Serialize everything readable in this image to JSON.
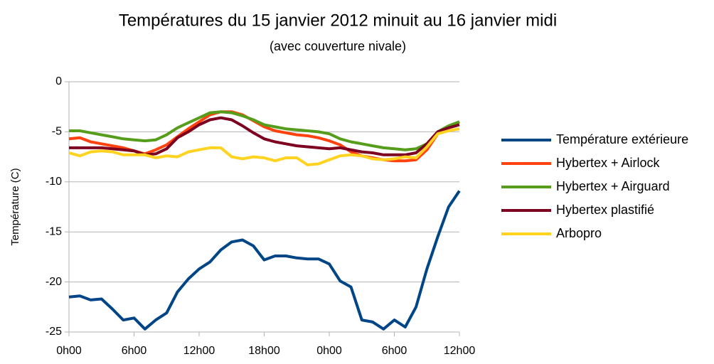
{
  "chart_data": {
    "type": "line",
    "title": "Températures du 15 janvier 2012 minuit au 16 janvier midi",
    "subtitle": "(avec couverture nivale)",
    "y_label": "Température (C)",
    "x": [
      0,
      1,
      2,
      3,
      4,
      5,
      6,
      7,
      8,
      9,
      10,
      11,
      12,
      13,
      14,
      15,
      16,
      17,
      18,
      19,
      20,
      21,
      22,
      23,
      24,
      25,
      26,
      27,
      28,
      29,
      30,
      31,
      32,
      33,
      34,
      35,
      36
    ],
    "xlim": [
      0,
      36
    ],
    "xticks": [
      {
        "value": 0,
        "label": "0h00"
      },
      {
        "value": 6,
        "label": "6h00"
      },
      {
        "value": 12,
        "label": "12h00"
      },
      {
        "value": 18,
        "label": "18h00"
      },
      {
        "value": 24,
        "label": "0h00"
      },
      {
        "value": 30,
        "label": "6h00"
      },
      {
        "value": 36,
        "label": "12h00"
      }
    ],
    "ylim": [
      -25,
      0
    ],
    "yticks": [
      0,
      -5,
      -10,
      -15,
      -20,
      -25
    ],
    "grid": true,
    "legend": "right",
    "series": [
      {
        "name": "Température extérieure",
        "color": "#004586",
        "values": [
          -21.5,
          -21.4,
          -21.8,
          -21.7,
          -22.7,
          -23.8,
          -23.6,
          -24.7,
          -23.8,
          -23.1,
          -21,
          -19.7,
          -18.7,
          -18,
          -16.8,
          -16,
          -15.8,
          -16.4,
          -17.8,
          -17.4,
          -17.4,
          -17.6,
          -17.7,
          -17.7,
          -18.2,
          -19.9,
          -20.5,
          -23.8,
          -24,
          -24.7,
          -23.8,
          -24.5,
          -22.5,
          -18.7,
          -15.5,
          -12.5,
          -10.9
        ]
      },
      {
        "name": "Hybertex + Airlock",
        "color": "#ff420e",
        "values": [
          -5.7,
          -5.6,
          -6.0,
          -6.2,
          -6.4,
          -6.6,
          -6.9,
          -7.2,
          -6.8,
          -6.3,
          -5.5,
          -4.7,
          -4.0,
          -3.3,
          -3.0,
          -3.0,
          -3.3,
          -3.9,
          -4.5,
          -4.9,
          -5.1,
          -5.3,
          -5.4,
          -5.6,
          -5.9,
          -6.3,
          -7.0,
          -7.4,
          -7.6,
          -7.8,
          -7.9,
          -7.9,
          -7.8,
          -6.8,
          -5.2,
          -4.6,
          -4.0
        ]
      },
      {
        "name": "Hybertex + Airguard",
        "color": "#579d1c",
        "values": [
          -4.9,
          -4.9,
          -5.1,
          -5.3,
          -5.5,
          -5.7,
          -5.8,
          -5.9,
          -5.8,
          -5.3,
          -4.6,
          -4.1,
          -3.6,
          -3.1,
          -3.0,
          -3.1,
          -3.4,
          -3.8,
          -4.3,
          -4.5,
          -4.7,
          -4.8,
          -4.9,
          -5.0,
          -5.2,
          -5.7,
          -6.0,
          -6.2,
          -6.4,
          -6.6,
          -6.7,
          -6.8,
          -6.7,
          -6.2,
          -5.0,
          -4.4,
          -4.0
        ]
      },
      {
        "name": "Hybertex plastifié",
        "color": "#7e0021",
        "values": [
          -6.6,
          -6.6,
          -6.6,
          -6.6,
          -6.7,
          -6.8,
          -6.9,
          -7.3,
          -7.2,
          -6.7,
          -5.6,
          -5.0,
          -4.3,
          -3.8,
          -3.6,
          -3.8,
          -4.4,
          -5.1,
          -5.7,
          -6.0,
          -6.2,
          -6.4,
          -6.5,
          -6.6,
          -6.7,
          -6.6,
          -6.8,
          -7.0,
          -7.1,
          -7.3,
          -7.3,
          -7.3,
          -7.1,
          -6.2,
          -5.0,
          -4.6,
          -4.3
        ]
      },
      {
        "name": "Arbopro",
        "color": "#ffd320",
        "values": [
          -7.1,
          -7.4,
          -7.0,
          -6.9,
          -7.0,
          -7.3,
          -7.3,
          -7.3,
          -7.6,
          -7.4,
          -7.5,
          -7.0,
          -6.8,
          -6.6,
          -6.6,
          -7.5,
          -7.7,
          -7.5,
          -7.6,
          -7.9,
          -7.6,
          -7.6,
          -8.3,
          -8.2,
          -7.8,
          -7.4,
          -7.3,
          -7.4,
          -7.7,
          -7.8,
          -7.7,
          -7.5,
          -7.6,
          -6.5,
          -5.2,
          -4.9,
          -4.7
        ]
      }
    ]
  }
}
